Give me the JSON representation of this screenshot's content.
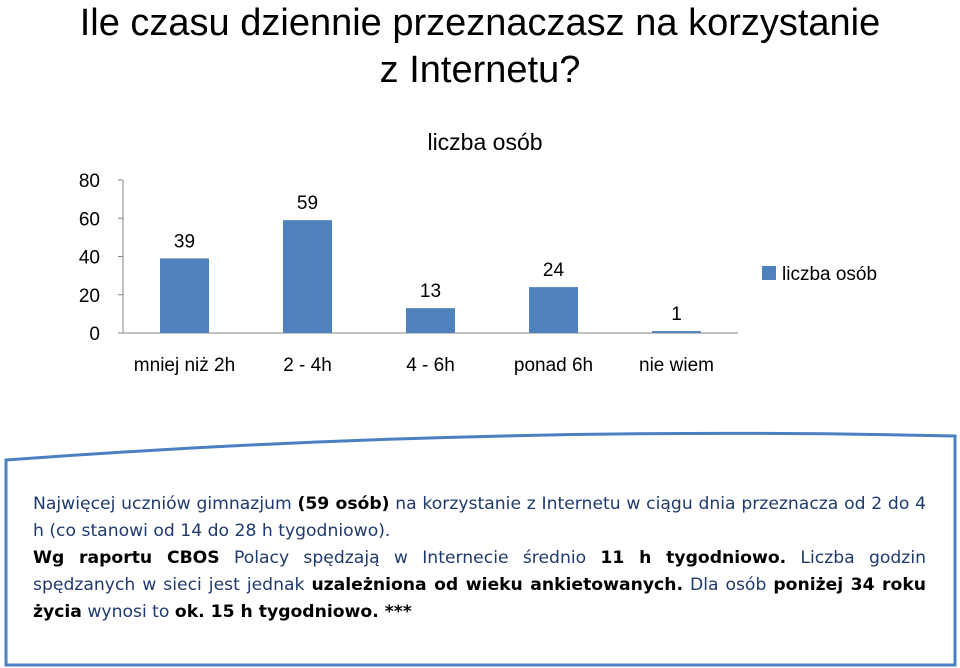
{
  "slide": {
    "title_line1": "Ile czasu dziennie przeznaczasz na korzystanie",
    "title_line2": "z Internetu?"
  },
  "colors": {
    "bar": "#4f81bd",
    "panel": "#4a7fc1",
    "panel_fill": "#ffffff",
    "accent_text": "#1f3a6e"
  },
  "chart_data": {
    "type": "bar",
    "title": "liczba osób",
    "categories": [
      "mniej niż 2h",
      "2 - 4h",
      "4 - 6h",
      "ponad 6h",
      "nie wiem"
    ],
    "series": [
      {
        "name": "liczba osób",
        "values": [
          39,
          59,
          13,
          24,
          1
        ]
      }
    ],
    "ylim": [
      0,
      80
    ],
    "yticks": [
      0,
      20,
      40,
      60,
      80
    ],
    "grid": false,
    "legend": "right",
    "data_labels": true
  },
  "note": {
    "p1_a": "Najwięcej uczniów gimnazjum ",
    "p1_b": "(59 osób)",
    "p1_c": " na korzystanie z Internetu w ciągu dnia przeznacza od 2 do 4 h (co stanowi od 14 do 28 h tygodniowo).",
    "p2_a": "Wg raportu CBOS",
    "p2_b": " Polacy spędzają w Internecie średnio ",
    "p2_c": "11 h tygodniowo.",
    "p2_d": " Liczba godzin spędzanych w sieci jest jednak ",
    "p2_e": "uzależniona od wieku ankietowanych.",
    "p2_f": " Dla osób ",
    "p2_g": "poniżej 34 roku życia",
    "p2_h": " wynosi to ",
    "p2_i": "ok. 15 h tygodniowo. ***"
  }
}
